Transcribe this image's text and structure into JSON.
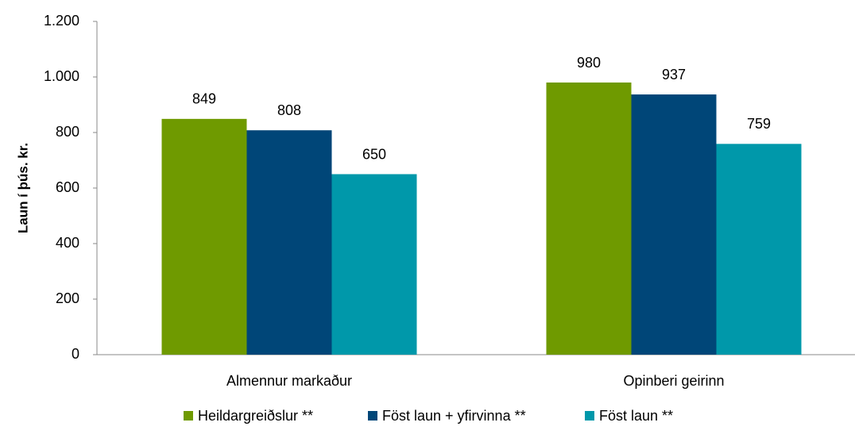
{
  "chart_data": {
    "type": "bar",
    "ylabel": "Laun í þús. kr.",
    "categories": [
      "Almennur markaður",
      "Opinberi geirinn"
    ],
    "series": [
      {
        "name": "Heildargreiðslur **",
        "color": "#6f9a00",
        "values": [
          849,
          980
        ]
      },
      {
        "name": "Föst laun + yfirvinna **",
        "color": "#004678",
        "values": [
          808,
          937
        ]
      },
      {
        "name": "Föst laun **",
        "color": "#0098aa",
        "values": [
          650,
          759
        ]
      }
    ],
    "ylim": [
      0,
      1200
    ],
    "yticks": [
      0,
      200,
      400,
      600,
      800,
      {
        "value": 1000,
        "label": "1.000"
      },
      {
        "value": 1200,
        "label": "1.200"
      }
    ],
    "grid": false,
    "legend": "bottom"
  }
}
